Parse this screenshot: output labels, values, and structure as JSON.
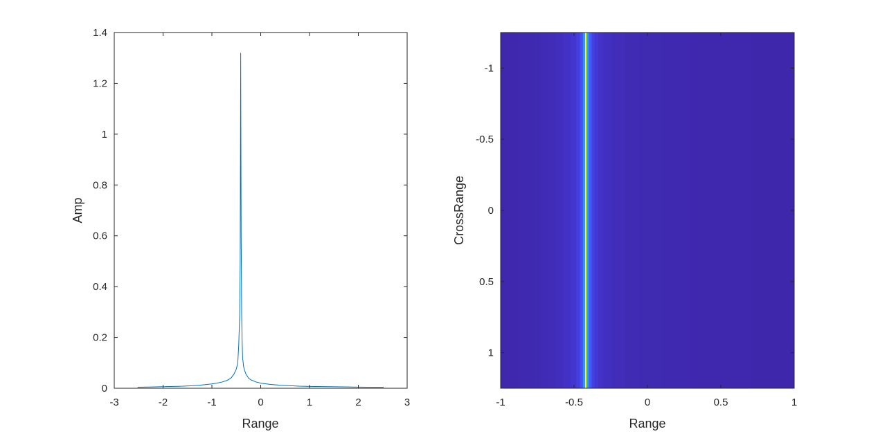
{
  "chart_data": [
    {
      "type": "line",
      "xlabel": "Range",
      "ylabel": "Amp",
      "xlim": [
        -3,
        3
      ],
      "ylim": [
        0,
        1.4
      ],
      "xticks": [
        -3,
        -2,
        -1,
        0,
        1,
        2,
        3
      ],
      "xtick_labels": [
        "-3",
        "-2",
        "-1",
        "0",
        "1",
        "2",
        "3"
      ],
      "yticks": [
        0,
        0.2,
        0.4,
        0.6,
        0.8,
        1,
        1.2,
        1.4
      ],
      "ytick_labels": [
        "0",
        "0.2",
        "0.4",
        "0.6",
        "0.8",
        "1",
        "1.2",
        "1.4"
      ],
      "grid": false,
      "series": [
        {
          "color": "#0072BD",
          "x": [
            -2.52,
            -2.2,
            -2.0,
            -1.8,
            -1.6,
            -1.4,
            -1.2,
            -1.0,
            -0.9,
            -0.8,
            -0.7,
            -0.65,
            -0.6,
            -0.55,
            -0.5,
            -0.47,
            -0.45,
            -0.43,
            -0.42,
            -0.41,
            -0.4,
            -0.39,
            -0.38,
            -0.37,
            -0.35,
            -0.33,
            -0.3,
            -0.25,
            -0.2,
            -0.1,
            0.0,
            0.2,
            0.4,
            0.6,
            0.8,
            1.0,
            1.4,
            1.8,
            2.2,
            2.52
          ],
          "y": [
            0.004,
            0.005,
            0.006,
            0.007,
            0.008,
            0.01,
            0.013,
            0.017,
            0.02,
            0.024,
            0.03,
            0.035,
            0.042,
            0.055,
            0.075,
            0.1,
            0.17,
            0.29,
            0.5,
            1.32,
            0.6,
            0.29,
            0.18,
            0.12,
            0.085,
            0.07,
            0.055,
            0.04,
            0.033,
            0.025,
            0.02,
            0.015,
            0.012,
            0.01,
            0.008,
            0.007,
            0.006,
            0.005,
            0.004,
            0.004
          ]
        }
      ]
    },
    {
      "type": "heatmap",
      "xlabel": "Range",
      "ylabel": "CrossRange",
      "xlim": [
        -1,
        1
      ],
      "ylim": [
        1.25,
        -1.25
      ],
      "xticks": [
        -1,
        -0.5,
        0,
        0.5,
        1
      ],
      "xtick_labels": [
        "-1",
        "-0.5",
        "0",
        "0.5",
        "1"
      ],
      "yticks": [
        -1,
        -0.5,
        0,
        0.5,
        1
      ],
      "ytick_labels": [
        "-1",
        "-0.5",
        "0",
        "0.5",
        "1"
      ],
      "grid": false,
      "colormap": [
        "#3E26A8",
        "#4740E8",
        "#3F6EFF",
        "#2F96F6",
        "#1AB8D3",
        "#2DCB98",
        "#A8C636",
        "#F3C23A",
        "#F8F80F"
      ],
      "background_color": "#3E26A8",
      "columns": [
        {
          "x": -1.0,
          "value": 0.005
        },
        {
          "x": -0.95,
          "value": 0.008
        },
        {
          "x": -0.9,
          "value": 0.01
        },
        {
          "x": -0.85,
          "value": 0.013
        },
        {
          "x": -0.8,
          "value": 0.016
        },
        {
          "x": -0.75,
          "value": 0.02
        },
        {
          "x": -0.7,
          "value": 0.025
        },
        {
          "x": -0.65,
          "value": 0.03
        },
        {
          "x": -0.6,
          "value": 0.04
        },
        {
          "x": -0.55,
          "value": 0.055
        },
        {
          "x": -0.5,
          "value": 0.075
        },
        {
          "x": -0.47,
          "value": 0.11
        },
        {
          "x": -0.45,
          "value": 0.17
        },
        {
          "x": -0.43,
          "value": 0.35
        },
        {
          "x": -0.42,
          "value": 1.0
        },
        {
          "x": -0.41,
          "value": 0.45
        },
        {
          "x": -0.39,
          "value": 0.2
        },
        {
          "x": -0.37,
          "value": 0.12
        },
        {
          "x": -0.35,
          "value": 0.085
        },
        {
          "x": -0.32,
          "value": 0.06
        },
        {
          "x": -0.28,
          "value": 0.045
        },
        {
          "x": -0.2,
          "value": 0.035
        },
        {
          "x": -0.1,
          "value": 0.025
        },
        {
          "x": 0.0,
          "value": 0.02
        },
        {
          "x": 0.2,
          "value": 0.015
        },
        {
          "x": 0.4,
          "value": 0.012
        },
        {
          "x": 0.6,
          "value": 0.01
        },
        {
          "x": 0.8,
          "value": 0.007
        },
        {
          "x": 1.0,
          "value": 0.005
        }
      ]
    }
  ]
}
